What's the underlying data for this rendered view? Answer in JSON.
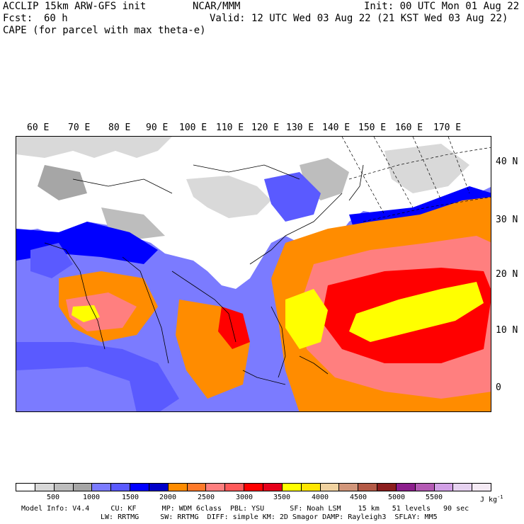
{
  "header": {
    "model": "ACCLIP 15km ARW-GFS init",
    "org": "NCAR/MMM",
    "init": "Init: 00 UTC Mon 01 Aug 22",
    "fcst_label": "Fcst:",
    "fcst_value": "60 h",
    "valid": "Valid: 12 UTC Wed 03 Aug 22 (21 KST Wed 03 Aug 22)",
    "field": "CAPE (for parcel with max theta-e)"
  },
  "map": {
    "lon_labels": [
      "60 E",
      "70 E",
      "80 E",
      "90 E",
      "100 E",
      "110 E",
      "120 E",
      "130 E",
      "140 E",
      "150 E",
      "160 E",
      "170 E"
    ],
    "lat_labels": [
      "40 N",
      "30 N",
      "20 N",
      "10 N",
      "0"
    ]
  },
  "colorbar": {
    "colors": [
      "#ffffff",
      "#d9d9d9",
      "#bdbdbd",
      "#a6a6a6",
      "#7b7bff",
      "#5a5aff",
      "#0000ff",
      "#0000c8",
      "#ff8c00",
      "#ff7a2a",
      "#ff7f7f",
      "#ff5a5a",
      "#ff0000",
      "#e6001a",
      "#ffff00",
      "#ffe600",
      "#f0d2a0",
      "#d2967a",
      "#b45a46",
      "#8c1e1e",
      "#8c1e8c",
      "#b45ab4",
      "#d2a0e6",
      "#e6d2f0",
      "#f5ebf5"
    ],
    "ticks": [
      "500",
      "1000",
      "1500",
      "2000",
      "2500",
      "3000",
      "3500",
      "4000",
      "4500",
      "5000",
      "5500"
    ],
    "units": "J kg"
  },
  "footer": {
    "line1": "Model Info: V4.4     CU: KF      MP: WDM 6class  PBL: YSU      SF: Noah LSM    15 km   51 levels   90 sec",
    "line2": "LW: RRTMG     SW: RRTMG  DIFF: simple KM: 2D Smagor DAMP: Rayleigh3  SFLAY: MM5"
  }
}
